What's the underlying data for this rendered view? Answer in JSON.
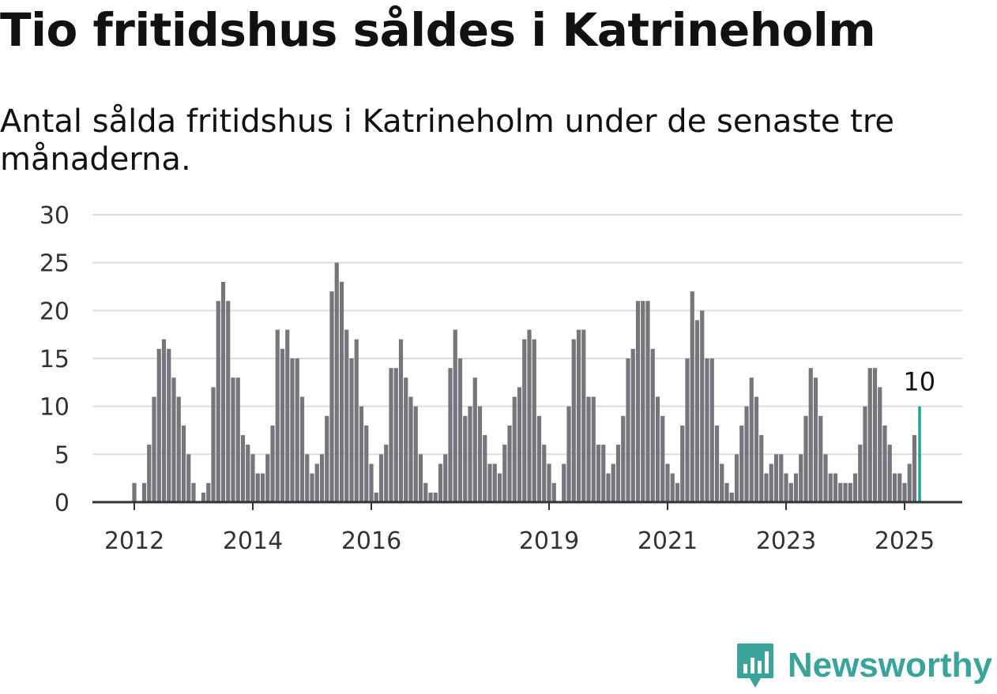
{
  "title": "Tio fritidshus såldes i Katrineholm",
  "subtitle": "Antal sålda fritidshus i Katrineholm under de senaste tre månaderna.",
  "brand": {
    "name": "Newsworthy",
    "icon": "bar-chart-bubble-icon",
    "color": "#3aa39a"
  },
  "colors": {
    "bar": "#76757b",
    "highlight": "#1aa6a0",
    "grid": "#dddddd",
    "axis": "#333333"
  },
  "chart_data": {
    "type": "bar",
    "title": "Tio fritidshus såldes i Katrineholm",
    "subtitle": "Antal sålda fritidshus i Katrineholm under de senaste tre månaderna.",
    "xlabel": "",
    "ylabel": "",
    "ylim": [
      0,
      30
    ],
    "yticks": [
      0,
      5,
      10,
      15,
      20,
      25,
      30
    ],
    "grid": true,
    "xticks": [
      {
        "label": "2012",
        "index": 0
      },
      {
        "label": "2014",
        "index": 24
      },
      {
        "label": "2016",
        "index": 48
      },
      {
        "label": "2019",
        "index": 84
      },
      {
        "label": "2021",
        "index": 108
      },
      {
        "label": "2023",
        "index": 132
      },
      {
        "label": "2025",
        "index": 156
      }
    ],
    "start": "2012-01",
    "frequency": "monthly",
    "values": [
      2,
      0,
      2,
      6,
      11,
      16,
      17,
      16,
      13,
      11,
      8,
      5,
      2,
      0,
      1,
      2,
      12,
      21,
      23,
      21,
      13,
      13,
      7,
      6,
      5,
      3,
      3,
      5,
      8,
      18,
      16,
      18,
      15,
      15,
      11,
      5,
      3,
      4,
      5,
      9,
      22,
      25,
      23,
      18,
      15,
      17,
      10,
      8,
      4,
      1,
      5,
      6,
      14,
      14,
      17,
      13,
      11,
      10,
      5,
      2,
      1,
      1,
      4,
      5,
      14,
      18,
      15,
      9,
      10,
      13,
      10,
      7,
      4,
      4,
      3,
      6,
      8,
      11,
      12,
      17,
      18,
      17,
      9,
      6,
      4,
      2,
      0,
      4,
      10,
      17,
      18,
      18,
      11,
      11,
      6,
      6,
      3,
      4,
      6,
      9,
      15,
      16,
      21,
      21,
      21,
      16,
      11,
      9,
      4,
      3,
      2,
      8,
      15,
      22,
      19,
      20,
      15,
      15,
      8,
      4,
      2,
      1,
      5,
      8,
      10,
      13,
      11,
      7,
      3,
      4,
      5,
      5,
      3,
      2,
      3,
      5,
      9,
      14,
      13,
      9,
      5,
      3,
      3,
      2,
      2,
      2,
      3,
      6,
      10,
      14,
      14,
      12,
      8,
      6,
      3,
      3,
      2,
      4,
      7,
      10
    ],
    "highlight_index": 159,
    "highlight_label": "10"
  }
}
